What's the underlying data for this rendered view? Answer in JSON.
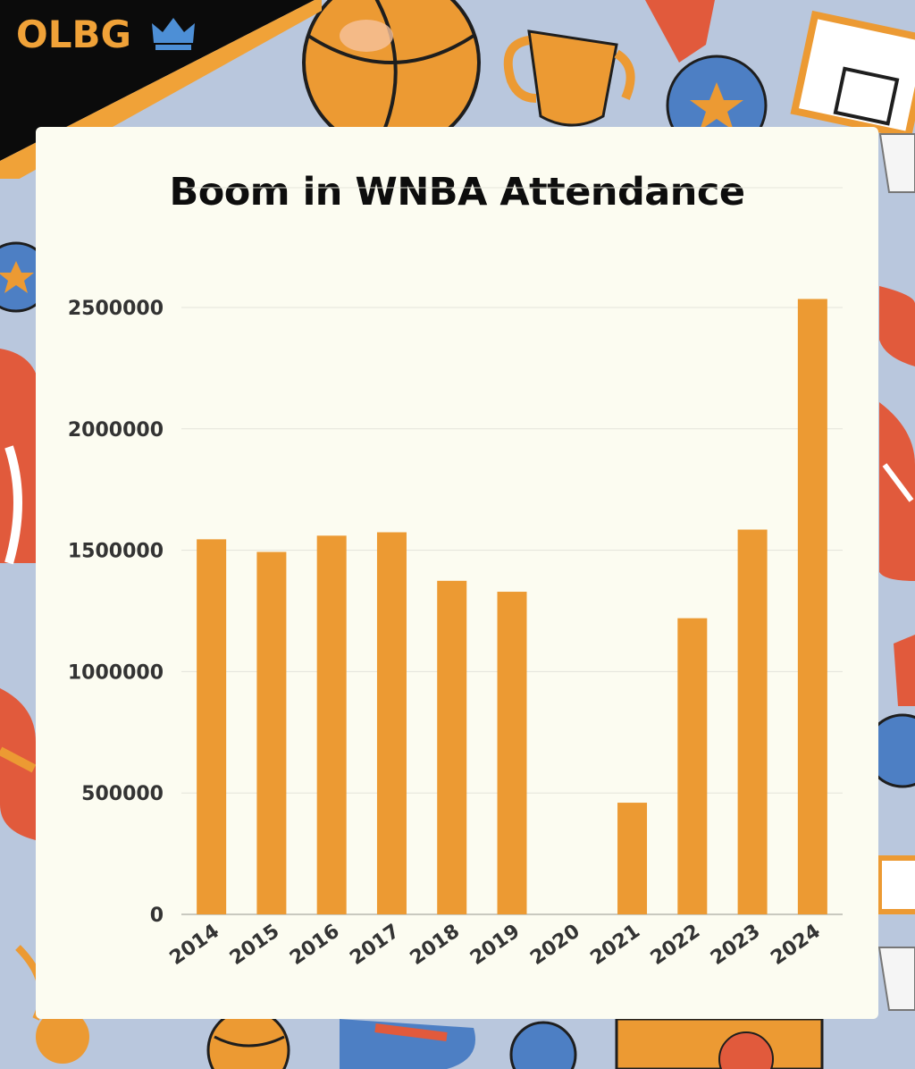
{
  "brand": {
    "logo_text": "OLBG",
    "colors": {
      "orange": "#f0a238",
      "black": "#0b0b0b",
      "blue": "#4d7fc4",
      "red": "#e15a3c",
      "background": "#b9c7dd",
      "card": "#fcfcf1"
    },
    "logo_icon": "crown-icon"
  },
  "chart_data": {
    "type": "bar",
    "title": "Boom in WNBA Attendance",
    "xlabel": "",
    "ylabel": "",
    "categories": [
      "2014",
      "2015",
      "2016",
      "2017",
      "2018",
      "2019",
      "2020",
      "2021",
      "2022",
      "2023",
      "2024"
    ],
    "values": [
      1545000,
      1493000,
      1560000,
      1574000,
      1374000,
      1329000,
      0,
      460000,
      1220000,
      1585000,
      2535000
    ],
    "ylim": [
      0,
      2500000
    ],
    "yticks": [
      "0",
      "500000",
      "1000000",
      "1500000",
      "2000000",
      "2500000"
    ],
    "grid": true,
    "bar_color": "#ec9a33"
  }
}
